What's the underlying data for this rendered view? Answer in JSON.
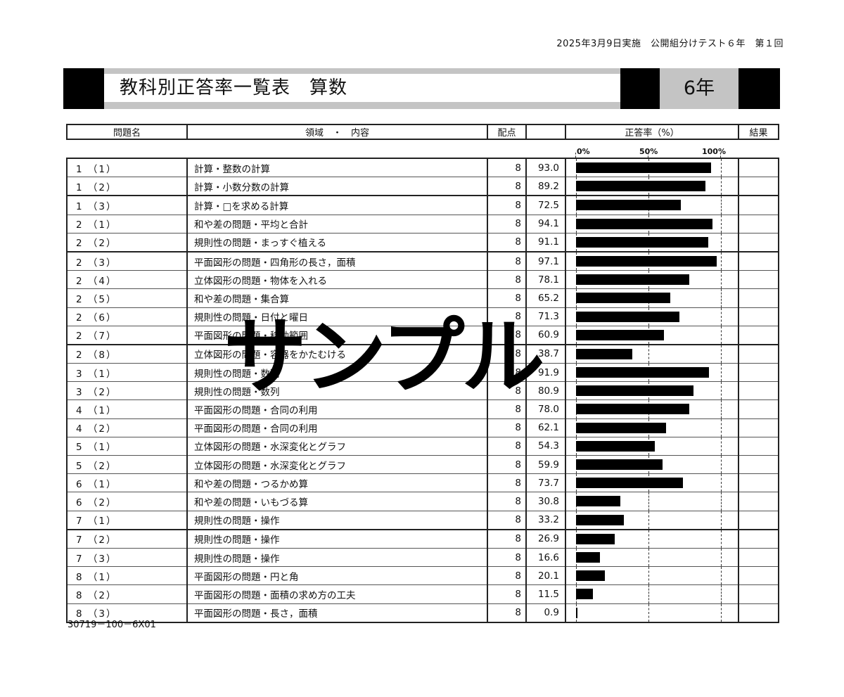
{
  "header": {
    "exam_line": "2025年3月9日実施　公開組分けテスト６年　第１回"
  },
  "banner": {
    "title": "教科別正答率一覧表　算数",
    "grade": "6年"
  },
  "table": {
    "headers": {
      "question": "問題名",
      "content": "領域　・　内容",
      "points": "配点",
      "rate": "正答率（%）",
      "result": "結果"
    },
    "scale_labels": [
      "0%",
      "50%",
      "100%"
    ],
    "rows": [
      {
        "q": "1 （1）",
        "content": "計算・整数の計算",
        "points": "8",
        "rate": 93.0,
        "rate_text": "93.0"
      },
      {
        "q": "1 （2）",
        "content": "計算・小数分数の計算",
        "points": "8",
        "rate": 89.2,
        "rate_text": "89.2"
      },
      {
        "q": "1 （3）",
        "content": "計算・□を求める計算",
        "points": "8",
        "rate": 72.5,
        "rate_text": "72.5"
      },
      {
        "q": "2 （1）",
        "content": "和や差の問題・平均と合計",
        "points": "8",
        "rate": 94.1,
        "rate_text": "94.1"
      },
      {
        "q": "2 （2）",
        "content": "規則性の問題・まっすぐ植える",
        "points": "8",
        "rate": 91.1,
        "rate_text": "91.1"
      },
      {
        "q": "2 （3）",
        "content": "平面図形の問題・四角形の長さ，面積",
        "points": "8",
        "rate": 97.1,
        "rate_text": "97.1"
      },
      {
        "q": "2 （4）",
        "content": "立体図形の問題・物体を入れる",
        "points": "8",
        "rate": 78.1,
        "rate_text": "78.1"
      },
      {
        "q": "2 （5）",
        "content": "和や差の問題・集合算",
        "points": "8",
        "rate": 65.2,
        "rate_text": "65.2"
      },
      {
        "q": "2 （6）",
        "content": "規則性の問題・日付と曜日",
        "points": "8",
        "rate": 71.3,
        "rate_text": "71.3"
      },
      {
        "q": "2 （7）",
        "content": "平面図形の問題・移動範囲",
        "points": "8",
        "rate": 60.9,
        "rate_text": "60.9"
      },
      {
        "q": "2 （8）",
        "content": "立体図形の問題・容器をかたむける",
        "points": "8",
        "rate": 38.7,
        "rate_text": "38.7"
      },
      {
        "q": "3 （1）",
        "content": "規則性の問題・数列",
        "points": "8",
        "rate": 91.9,
        "rate_text": "91.9"
      },
      {
        "q": "3 （2）",
        "content": "規則性の問題・数列",
        "points": "8",
        "rate": 80.9,
        "rate_text": "80.9"
      },
      {
        "q": "4 （1）",
        "content": "平面図形の問題・合同の利用",
        "points": "8",
        "rate": 78.0,
        "rate_text": "78.0"
      },
      {
        "q": "4 （2）",
        "content": "平面図形の問題・合同の利用",
        "points": "8",
        "rate": 62.1,
        "rate_text": "62.1"
      },
      {
        "q": "5 （1）",
        "content": "立体図形の問題・水深変化とグラフ",
        "points": "8",
        "rate": 54.3,
        "rate_text": "54.3"
      },
      {
        "q": "5 （2）",
        "content": "立体図形の問題・水深変化とグラフ",
        "points": "8",
        "rate": 59.9,
        "rate_text": "59.9"
      },
      {
        "q": "6 （1）",
        "content": "和や差の問題・つるかめ算",
        "points": "8",
        "rate": 73.7,
        "rate_text": "73.7"
      },
      {
        "q": "6 （2）",
        "content": "和や差の問題・いもづる算",
        "points": "8",
        "rate": 30.8,
        "rate_text": "30.8"
      },
      {
        "q": "7 （1）",
        "content": "規則性の問題・操作",
        "points": "8",
        "rate": 33.2,
        "rate_text": "33.2"
      },
      {
        "q": "7 （2）",
        "content": "規則性の問題・操作",
        "points": "8",
        "rate": 26.9,
        "rate_text": "26.9"
      },
      {
        "q": "7 （3）",
        "content": "規則性の問題・操作",
        "points": "8",
        "rate": 16.6,
        "rate_text": "16.6"
      },
      {
        "q": "8 （1）",
        "content": "平面図形の問題・円と角",
        "points": "8",
        "rate": 20.1,
        "rate_text": "20.1"
      },
      {
        "q": "8 （2）",
        "content": "平面図形の問題・面積の求め方の工夫",
        "points": "8",
        "rate": 11.5,
        "rate_text": "11.5"
      },
      {
        "q": "8 （3）",
        "content": "平面図形の問題・長さ，面積",
        "points": "8",
        "rate": 0.9,
        "rate_text": "0.9"
      }
    ]
  },
  "watermark": "サンプル",
  "footer": {
    "code": "30719－100－6X01"
  },
  "colors": {
    "bar": "#000000",
    "banner_gray": "#c4c4c4"
  }
}
